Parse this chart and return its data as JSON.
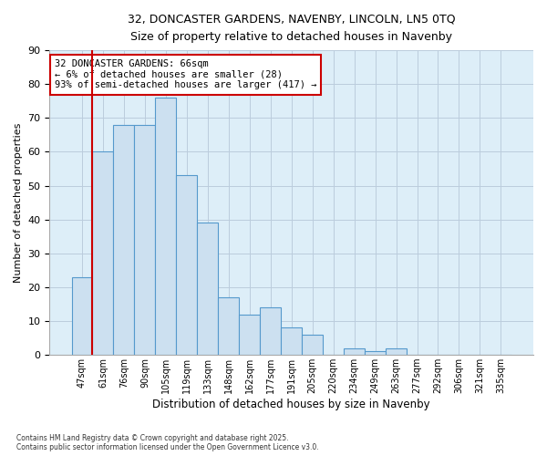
{
  "title_line1": "32, DONCASTER GARDENS, NAVENBY, LINCOLN, LN5 0TQ",
  "title_line2": "Size of property relative to detached houses in Navenby",
  "xlabel": "Distribution of detached houses by size in Navenby",
  "ylabel": "Number of detached properties",
  "categories": [
    "47sqm",
    "61sqm",
    "76sqm",
    "90sqm",
    "105sqm",
    "119sqm",
    "133sqm",
    "148sqm",
    "162sqm",
    "177sqm",
    "191sqm",
    "205sqm",
    "220sqm",
    "234sqm",
    "249sqm",
    "263sqm",
    "277sqm",
    "292sqm",
    "306sqm",
    "321sqm",
    "335sqm"
  ],
  "values": [
    23,
    60,
    68,
    68,
    76,
    53,
    39,
    17,
    12,
    14,
    8,
    6,
    0,
    2,
    1,
    2,
    0,
    0,
    0,
    0,
    0
  ],
  "bar_color": "#cce0f0",
  "bar_edge_color": "#5599cc",
  "vline_x_idx": 1,
  "vline_color": "#cc0000",
  "annotation_text": "32 DONCASTER GARDENS: 66sqm\n← 6% of detached houses are smaller (28)\n93% of semi-detached houses are larger (417) →",
  "annotation_box_color": "#ffffff",
  "annotation_box_edge_color": "#cc0000",
  "ylim": [
    0,
    90
  ],
  "yticks": [
    0,
    10,
    20,
    30,
    40,
    50,
    60,
    70,
    80,
    90
  ],
  "grid_color": "#bbccdd",
  "fig_background_color": "#ffffff",
  "plot_background_color": "#ddeef8",
  "footnote": "Contains HM Land Registry data © Crown copyright and database right 2025.\nContains public sector information licensed under the Open Government Licence v3.0."
}
